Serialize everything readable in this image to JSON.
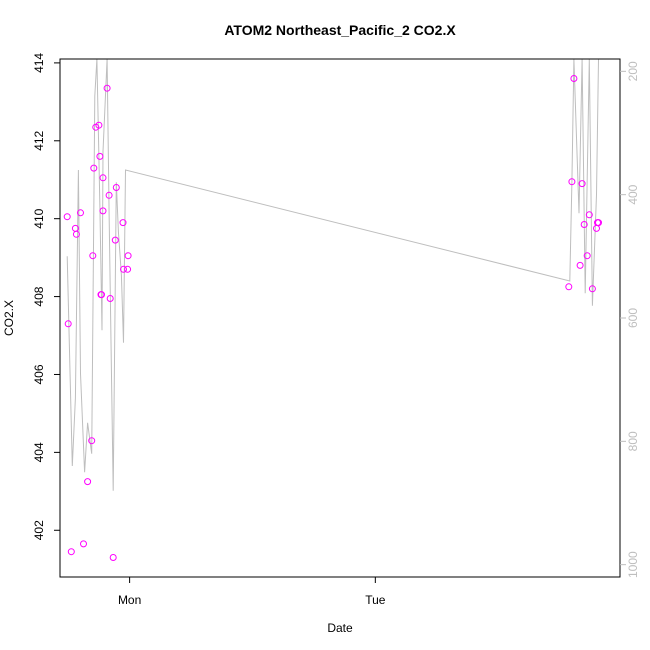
{
  "chart_data": {
    "type": "scatter",
    "title": "ATOM2 Northeast_Pacific_2 CO2.X",
    "xlabel": "Date",
    "ylabel": "CO2.X",
    "x_ticks": [
      {
        "label": "Mon",
        "hours": 0
      },
      {
        "label": "Tue",
        "hours": 24
      }
    ],
    "xlim_hours": [
      -6.8,
      47.9
    ],
    "ylim": [
      400.8,
      414.1
    ],
    "yticks": [
      402,
      404,
      406,
      408,
      410,
      412,
      414
    ],
    "y2_ticks": [
      200,
      400,
      600,
      800,
      1000
    ],
    "y2lim_inverted": [
      180,
      1020
    ],
    "series": [
      {
        "role": "points",
        "color": "#ff00ff",
        "points": [
          {
            "x": -6.1,
            "y": 410.05
          },
          {
            "x": -6.0,
            "y": 407.3
          },
          {
            "x": -5.7,
            "y": 401.45
          },
          {
            "x": -5.3,
            "y": 409.75
          },
          {
            "x": -5.2,
            "y": 409.6
          },
          {
            "x": -4.8,
            "y": 410.15
          },
          {
            "x": -4.5,
            "y": 401.65
          },
          {
            "x": -4.1,
            "y": 403.25
          },
          {
            "x": -3.7,
            "y": 404.3
          },
          {
            "x": -3.6,
            "y": 409.05
          },
          {
            "x": -3.5,
            "y": 411.3
          },
          {
            "x": -3.3,
            "y": 412.35
          },
          {
            "x": -3.0,
            "y": 412.4
          },
          {
            "x": -2.9,
            "y": 411.6
          },
          {
            "x": -2.8,
            "y": 408.05
          },
          {
            "x": -2.75,
            "y": 408.05
          },
          {
            "x": -2.6,
            "y": 410.2
          },
          {
            "x": -2.6,
            "y": 411.05
          },
          {
            "x": -2.2,
            "y": 413.35
          },
          {
            "x": -2.0,
            "y": 410.6
          },
          {
            "x": -1.9,
            "y": 407.95
          },
          {
            "x": -1.6,
            "y": 401.3
          },
          {
            "x": -1.4,
            "y": 409.45
          },
          {
            "x": -1.3,
            "y": 410.8
          },
          {
            "x": -0.65,
            "y": 409.9
          },
          {
            "x": -0.6,
            "y": 408.7
          },
          {
            "x": -0.2,
            "y": 408.7
          },
          {
            "x": -0.15,
            "y": 409.05
          },
          {
            "x": 42.9,
            "y": 408.25
          },
          {
            "x": 43.2,
            "y": 410.95
          },
          {
            "x": 43.4,
            "y": 413.6
          },
          {
            "x": 44.0,
            "y": 408.8
          },
          {
            "x": 44.2,
            "y": 410.9
          },
          {
            "x": 44.4,
            "y": 409.85
          },
          {
            "x": 44.7,
            "y": 409.05
          },
          {
            "x": 44.9,
            "y": 410.1
          },
          {
            "x": 45.2,
            "y": 408.2
          },
          {
            "x": 45.6,
            "y": 409.75
          },
          {
            "x": 45.7,
            "y": 409.9
          },
          {
            "x": 45.8,
            "y": 409.9
          }
        ]
      },
      {
        "role": "line",
        "color": "#bebebe",
        "axis": "right",
        "points": [
          {
            "x": -6.1,
            "y": 500
          },
          {
            "x": -5.6,
            "y": 840
          },
          {
            "x": -5.3,
            "y": 730
          },
          {
            "x": -5.0,
            "y": 360
          },
          {
            "x": -4.8,
            "y": 690
          },
          {
            "x": -4.4,
            "y": 850
          },
          {
            "x": -4.1,
            "y": 770
          },
          {
            "x": -3.7,
            "y": 820
          },
          {
            "x": -3.4,
            "y": 240
          },
          {
            "x": -3.2,
            "y": 150
          },
          {
            "x": -2.9,
            "y": 420
          },
          {
            "x": -2.7,
            "y": 620
          },
          {
            "x": -2.6,
            "y": 330
          },
          {
            "x": -2.2,
            "y": 150
          },
          {
            "x": -2.0,
            "y": 430
          },
          {
            "x": -1.6,
            "y": 880
          },
          {
            "x": -1.3,
            "y": 380
          },
          {
            "x": -1.1,
            "y": 460
          },
          {
            "x": -0.8,
            "y": 530
          },
          {
            "x": -0.6,
            "y": 640
          },
          {
            "x": -0.4,
            "y": 360
          },
          {
            "x": 43.0,
            "y": 540
          },
          {
            "x": 43.2,
            "y": 380
          },
          {
            "x": 43.4,
            "y": 150
          },
          {
            "x": 43.9,
            "y": 430
          },
          {
            "x": 44.2,
            "y": 150
          },
          {
            "x": 44.5,
            "y": 560
          },
          {
            "x": 44.9,
            "y": 150
          },
          {
            "x": 45.2,
            "y": 580
          },
          {
            "x": 45.6,
            "y": 400
          },
          {
            "x": 45.8,
            "y": 150
          }
        ]
      }
    ],
    "grid": false,
    "legend": "none"
  }
}
